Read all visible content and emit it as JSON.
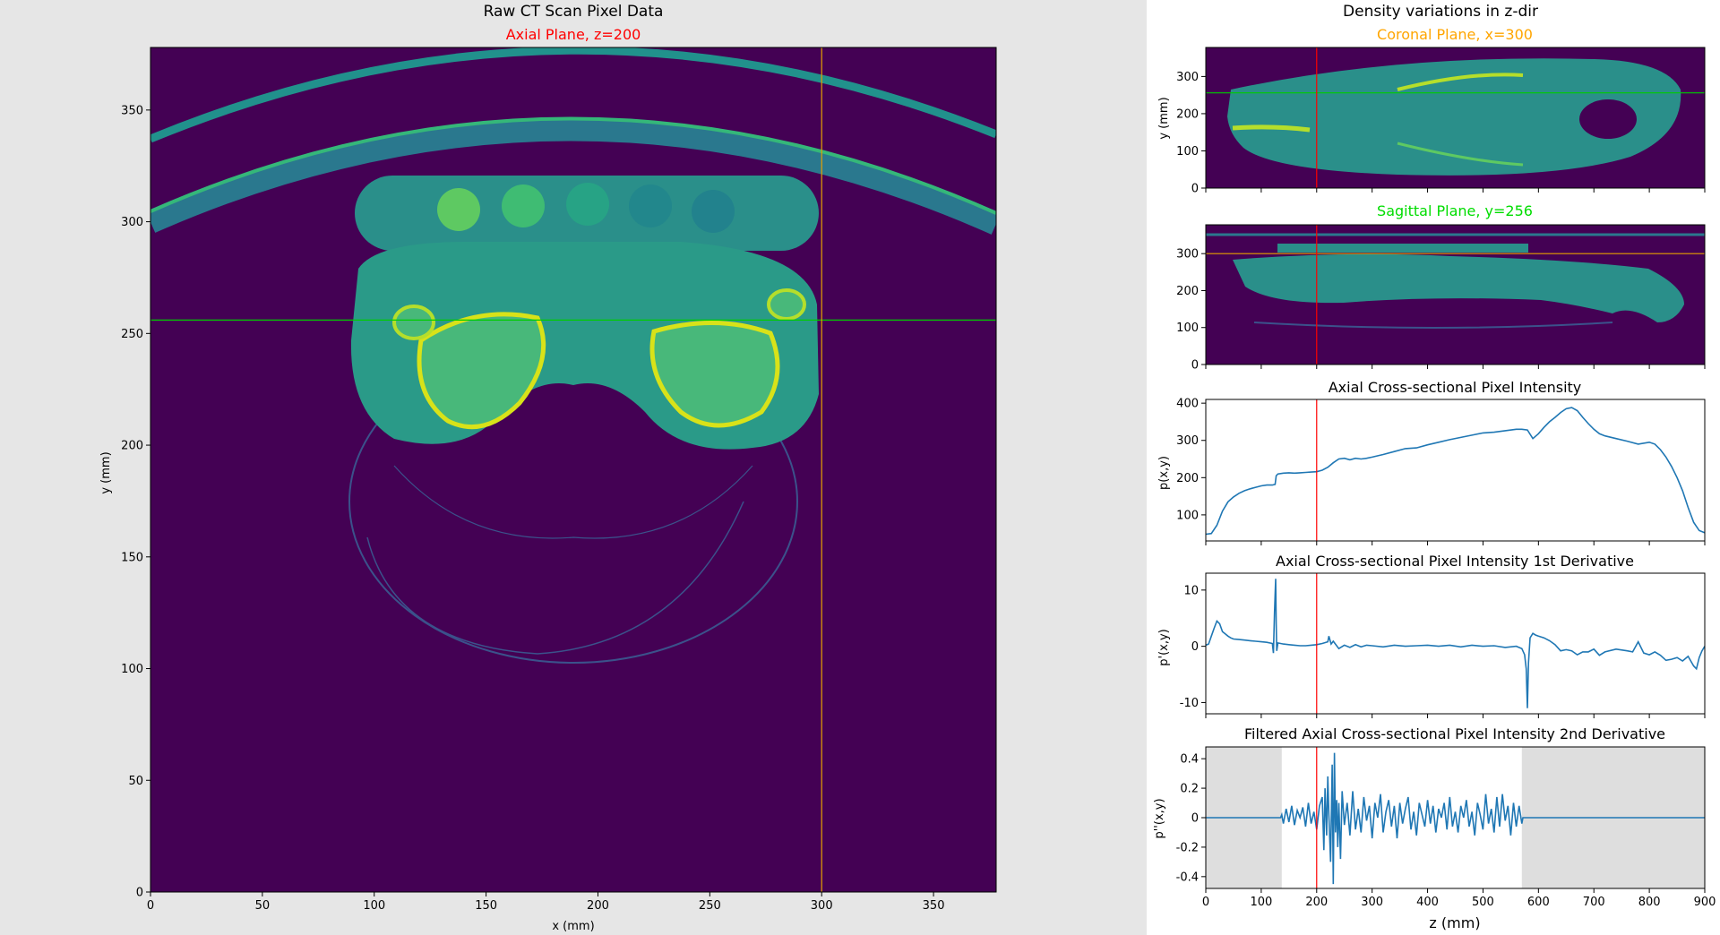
{
  "left_panel": {
    "suptitle": "Raw CT Scan Pixel Data",
    "subtitle": "Axial Plane, z=200",
    "subtitle_color": "#ff0000",
    "background": "#e6e6e6"
  },
  "right_panel": {
    "suptitle": "Density variations in z-dir",
    "background": "#ffffff"
  },
  "colors": {
    "line_blue": "#1f77b4",
    "marker_red": "#ff0000",
    "marker_green": "#00cc00",
    "marker_orange": "#e6a100",
    "plot_bg": "#440154",
    "shade": "#dedede"
  },
  "chart_data": [
    {
      "id": "axial",
      "type": "heatmap",
      "title": "Axial Plane, z=200",
      "xlabel": "x (mm)",
      "ylabel": "y (mm)",
      "xlim": [
        0,
        378
      ],
      "ylim": [
        0,
        378
      ],
      "xticks": [
        0,
        50,
        100,
        150,
        200,
        250,
        300,
        350
      ],
      "yticks": [
        0,
        50,
        100,
        150,
        200,
        250,
        300,
        350
      ],
      "colormap": "viridis",
      "crosshair": {
        "x": 300,
        "y": 256
      }
    },
    {
      "id": "coronal",
      "type": "heatmap",
      "title": "Coronal Plane, x=300",
      "title_color": "#ffa500",
      "ylabel": "y (mm)",
      "xlim": [
        0,
        900
      ],
      "ylim": [
        0,
        378
      ],
      "yticks": [
        0,
        100,
        200,
        300
      ],
      "colormap": "viridis",
      "markers": {
        "z": 200,
        "y": 256
      }
    },
    {
      "id": "sagittal",
      "type": "heatmap",
      "title": "Sagittal Plane, y=256",
      "title_color": "#00dd00",
      "xlim": [
        0,
        900
      ],
      "ylim": [
        0,
        378
      ],
      "yticks": [
        0,
        100,
        200,
        300
      ],
      "colormap": "viridis",
      "markers": {
        "z": 200,
        "x": 300
      }
    },
    {
      "id": "intensity",
      "type": "line",
      "title": "Axial Cross-sectional Pixel Intensity",
      "ylabel": "p(x,y)",
      "xlim": [
        0,
        900
      ],
      "ylim": [
        30,
        410
      ],
      "yticks": [
        100,
        200,
        300,
        400
      ],
      "marker_z": 200,
      "series": [
        {
          "x": [
            0,
            10,
            20,
            30,
            40,
            50,
            60,
            70,
            80,
            90,
            100,
            110,
            120,
            125,
            127,
            130,
            140,
            150,
            160,
            170,
            180,
            190,
            200,
            210,
            220,
            230,
            240,
            250,
            260,
            270,
            280,
            290,
            300,
            320,
            340,
            360,
            380,
            400,
            420,
            440,
            460,
            480,
            500,
            520,
            540,
            560,
            570,
            580,
            590,
            600,
            610,
            620,
            630,
            640,
            650,
            660,
            670,
            680,
            690,
            700,
            710,
            720,
            740,
            760,
            780,
            800,
            810,
            820,
            830,
            840,
            850,
            860,
            870,
            880,
            890,
            900
          ],
          "y": [
            48,
            50,
            72,
            110,
            135,
            148,
            158,
            165,
            170,
            174,
            178,
            180,
            180,
            182,
            205,
            210,
            212,
            213,
            212,
            213,
            214,
            215,
            216,
            220,
            228,
            240,
            250,
            252,
            248,
            252,
            250,
            252,
            255,
            262,
            270,
            278,
            280,
            288,
            295,
            302,
            308,
            314,
            320,
            322,
            326,
            330,
            330,
            328,
            305,
            318,
            335,
            350,
            362,
            375,
            385,
            388,
            380,
            362,
            345,
            330,
            318,
            312,
            305,
            298,
            290,
            295,
            290,
            275,
            255,
            230,
            200,
            165,
            120,
            80,
            58,
            52
          ]
        }
      ]
    },
    {
      "id": "derivative1",
      "type": "line",
      "title": "Axial Cross-sectional Pixel Intensity 1st Derivative",
      "ylabel": "p'(x,y)",
      "xlim": [
        0,
        900
      ],
      "ylim": [
        -12,
        13
      ],
      "yticks": [
        -10,
        0,
        10
      ],
      "marker_z": 200,
      "series": [
        {
          "x": [
            0,
            5,
            10,
            15,
            20,
            25,
            30,
            35,
            40,
            45,
            50,
            60,
            70,
            80,
            90,
            100,
            110,
            120,
            122,
            124,
            126,
            127,
            128,
            130,
            135,
            140,
            150,
            160,
            170,
            180,
            190,
            200,
            210,
            220,
            222,
            226,
            230,
            240,
            250,
            260,
            270,
            280,
            290,
            300,
            320,
            340,
            360,
            380,
            400,
            420,
            440,
            460,
            480,
            500,
            520,
            540,
            560,
            570,
            575,
            578,
            580,
            582,
            585,
            590,
            595,
            600,
            610,
            620,
            630,
            640,
            650,
            660,
            670,
            680,
            690,
            700,
            710,
            720,
            740,
            760,
            770,
            780,
            790,
            800,
            810,
            820,
            830,
            840,
            850,
            860,
            870,
            880,
            885,
            890,
            895,
            900
          ],
          "y": [
            0.2,
            0.4,
            1.8,
            3.2,
            4.5,
            4.0,
            2.6,
            2.2,
            1.8,
            1.5,
            1.3,
            1.2,
            1.1,
            1.0,
            0.9,
            0.8,
            0.7,
            0.5,
            -1.2,
            6.0,
            12.0,
            4.0,
            -0.8,
            0.6,
            0.5,
            0.4,
            0.3,
            0.2,
            0.1,
            0.1,
            0.2,
            0.3,
            0.5,
            0.8,
            1.8,
            0.4,
            0.9,
            -0.4,
            0.2,
            -0.2,
            0.3,
            -0.1,
            0.2,
            0.1,
            -0.1,
            0.2,
            0.0,
            0.1,
            0.2,
            0.0,
            0.2,
            -0.1,
            0.2,
            0.0,
            0.1,
            -0.2,
            0.0,
            -0.4,
            -1.5,
            -4.0,
            -11.0,
            -3.0,
            1.5,
            2.3,
            2.0,
            1.8,
            1.5,
            1.0,
            0.3,
            -0.8,
            -0.6,
            -0.8,
            -1.5,
            -1.0,
            -1.0,
            -0.5,
            -1.6,
            -1.0,
            -0.5,
            -0.8,
            -1.0,
            0.8,
            -1.2,
            -1.5,
            -1.0,
            -1.6,
            -2.5,
            -2.3,
            -2.0,
            -2.6,
            -1.8,
            -3.5,
            -4.0,
            -2.0,
            -0.8,
            0.0
          ]
        }
      ]
    },
    {
      "id": "derivative2",
      "type": "line",
      "title": "Filtered Axial Cross-sectional Pixel Intensity 2nd Derivative",
      "ylabel": "p''(x,y)",
      "xlabel": "z (mm)",
      "xlim": [
        0,
        900
      ],
      "ylim": [
        -0.48,
        0.48
      ],
      "xticks": [
        0,
        100,
        200,
        300,
        400,
        500,
        600,
        700,
        800,
        900
      ],
      "yticks": [
        -0.4,
        -0.2,
        0.0,
        0.2,
        0.4
      ],
      "marker_z": 200,
      "shaded_regions": [
        [
          0,
          137
        ],
        [
          570,
          900
        ]
      ],
      "series": [
        {
          "x": [
            0,
            135,
            137,
            140,
            145,
            150,
            155,
            160,
            165,
            170,
            175,
            180,
            185,
            190,
            195,
            200,
            205,
            210,
            213,
            215,
            218,
            220,
            222,
            225,
            228,
            230,
            232,
            234,
            236,
            238,
            240,
            243,
            246,
            250,
            255,
            260,
            265,
            270,
            275,
            280,
            285,
            290,
            295,
            300,
            305,
            310,
            315,
            320,
            325,
            330,
            335,
            340,
            345,
            350,
            355,
            360,
            365,
            370,
            375,
            380,
            385,
            390,
            395,
            400,
            405,
            410,
            415,
            420,
            425,
            430,
            435,
            440,
            445,
            450,
            455,
            460,
            465,
            470,
            475,
            480,
            485,
            490,
            495,
            500,
            505,
            510,
            515,
            520,
            525,
            530,
            535,
            540,
            545,
            550,
            555,
            560,
            565,
            570,
            572,
            900
          ],
          "y": [
            0.0,
            0.0,
            0.02,
            -0.04,
            0.06,
            -0.03,
            0.08,
            -0.05,
            0.05,
            0.0,
            0.07,
            -0.06,
            0.1,
            -0.04,
            0.04,
            -0.08,
            0.08,
            0.14,
            -0.22,
            0.2,
            -0.12,
            0.28,
            0.02,
            -0.3,
            0.36,
            -0.45,
            0.44,
            -0.1,
            0.12,
            -0.2,
            0.1,
            -0.28,
            0.18,
            -0.05,
            0.1,
            -0.12,
            0.18,
            -0.08,
            0.06,
            -0.1,
            0.14,
            -0.02,
            0.08,
            -0.14,
            0.1,
            0.0,
            0.16,
            -0.1,
            0.04,
            0.12,
            -0.06,
            0.08,
            -0.14,
            0.1,
            -0.04,
            0.06,
            0.14,
            -0.08,
            0.04,
            -0.12,
            0.1,
            0.02,
            -0.06,
            0.12,
            -0.04,
            0.08,
            -0.1,
            0.06,
            0.0,
            0.1,
            -0.08,
            0.14,
            -0.06,
            0.04,
            -0.1,
            0.08,
            0.0,
            0.12,
            -0.06,
            0.04,
            -0.12,
            0.1,
            0.02,
            -0.08,
            0.16,
            -0.04,
            0.06,
            -0.1,
            0.14,
            -0.06,
            0.16,
            -0.02,
            0.08,
            -0.12,
            0.1,
            -0.06,
            0.08,
            -0.04,
            0.0,
            0.0
          ]
        }
      ]
    }
  ]
}
